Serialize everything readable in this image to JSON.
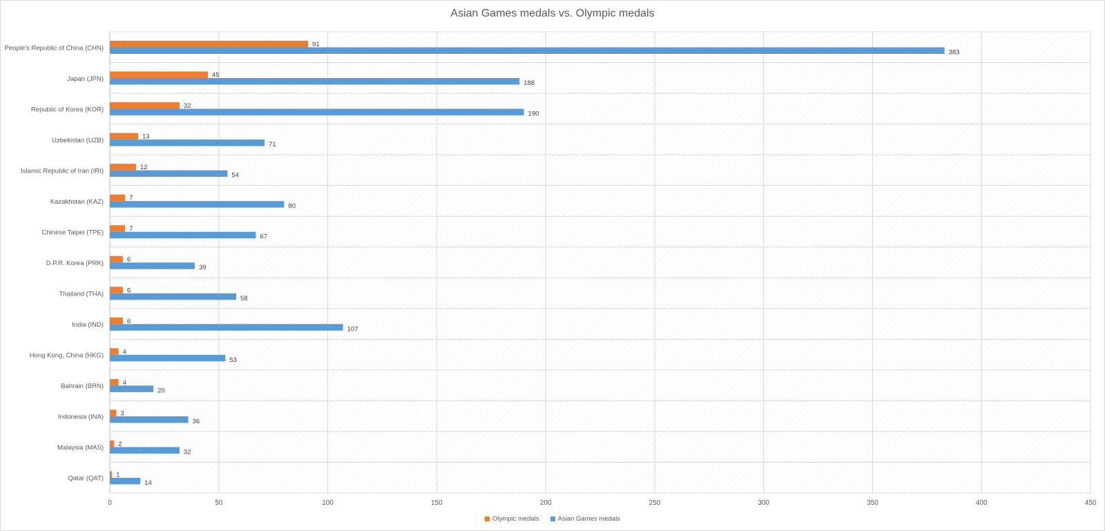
{
  "chart_data": {
    "type": "bar",
    "orientation": "horizontal",
    "title": "Asian Games medals vs. Olympic medals",
    "categories": [
      "People's Republic of China (CHN)",
      "Japan (JPN)",
      "Republic of Korea (KOR)",
      "Uzbekistan (UZB)",
      "Islamic Republic of Iran (IRI)",
      "Kazakhstan (KAZ)",
      "Chinese Taipei (TPE)",
      "D.P.R. Korea (PRK)",
      "Thailand (THA)",
      "India (IND)",
      "Hong Kong, China (HKG)",
      "Bahrain (BRN)",
      "Indonesia (INA)",
      "Malaysia (MAS)",
      "Qatar (QAT)"
    ],
    "series": [
      {
        "name": "Olympic medals",
        "color": "#ED7D31",
        "values": [
          91,
          45,
          32,
          13,
          12,
          7,
          7,
          6,
          6,
          6,
          4,
          4,
          3,
          2,
          1
        ]
      },
      {
        "name": "Asian Games medals",
        "color": "#5B9BD5",
        "values": [
          383,
          188,
          190,
          71,
          54,
          80,
          67,
          39,
          58,
          107,
          53,
          20,
          36,
          32,
          14
        ]
      }
    ],
    "x_ticks": [
      "0",
      "50",
      "100",
      "150",
      "200",
      "250",
      "300",
      "350",
      "400",
      "450"
    ],
    "xlim": [
      0,
      450
    ],
    "grid": true,
    "legend_position": "bottom"
  }
}
